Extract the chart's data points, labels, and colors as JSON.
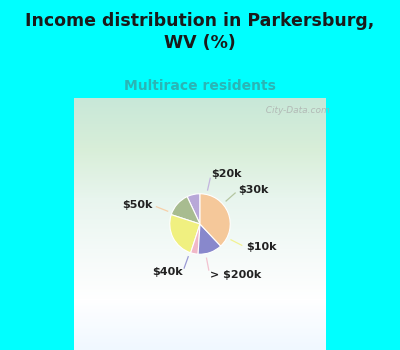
{
  "title": "Income distribution in Parkersburg,\nWV (%)",
  "subtitle": "Multirace residents",
  "title_color": "#1a1a1a",
  "subtitle_color": "#2ab5b5",
  "background_color": "#00ffff",
  "slices": [
    {
      "label": "$20k",
      "value": 7,
      "color": "#b8a8d8"
    },
    {
      "label": "$30k",
      "value": 13,
      "color": "#a8bc90"
    },
    {
      "label": "$10k",
      "value": 25,
      "color": "#f0f080"
    },
    {
      "label": "> $200k",
      "value": 4,
      "color": "#f0b8c8"
    },
    {
      "label": "$40k",
      "value": 13,
      "color": "#8888cc"
    },
    {
      "label": "$50k",
      "value": 38,
      "color": "#f5c89a"
    }
  ],
  "watermark": "City-Data.com",
  "start_angle": 90,
  "chart_bg_colors": [
    "#e0f0e0",
    "#d8ece8",
    "#f0f8f8",
    "#ffffff"
  ]
}
